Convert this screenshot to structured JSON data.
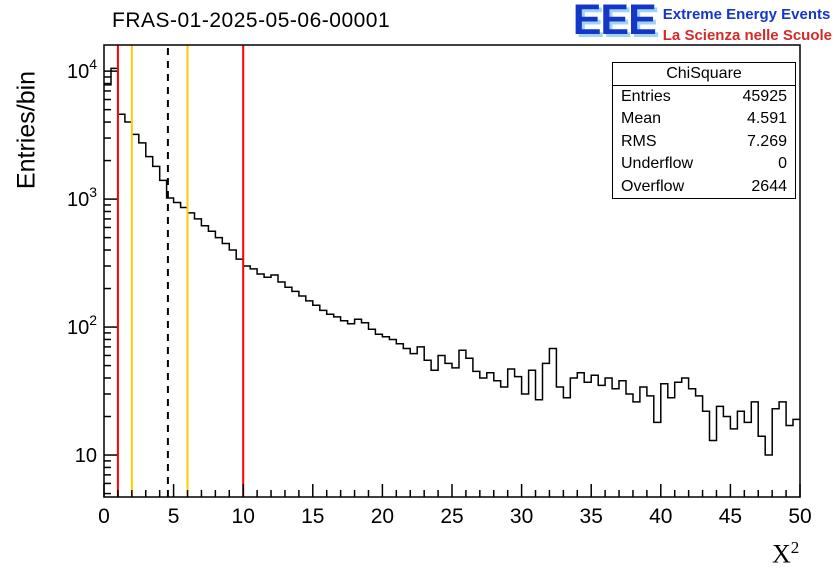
{
  "title": "FRAS-01-2025-05-06-00001",
  "logo": {
    "letters": "EEE",
    "line1": "Extreme Energy Events",
    "line2": "La Scienza nelle Scuole",
    "letters_color": "#1537c8",
    "line1_color": "#1537c8",
    "line2_color": "#d42a2a"
  },
  "stats_box": {
    "header": "ChiSquare",
    "rows": [
      {
        "label": "Entries",
        "value": "45925"
      },
      {
        "label": "Mean",
        "value": "4.591"
      },
      {
        "label": "RMS",
        "value": "7.269"
      },
      {
        "label": "Underflow",
        "value": "0"
      },
      {
        "label": "Overflow",
        "value": "2644"
      }
    ]
  },
  "axis_labels": {
    "y": "Entries/bin",
    "x_base": "X",
    "x_exp": "2"
  },
  "chart_data": {
    "type": "bar",
    "style": "step-histogram",
    "title": "FRAS-01-2025-05-06-00001",
    "xlabel": "X^2",
    "ylabel": "Entries/bin",
    "xlim": [
      0,
      50
    ],
    "ylim": [
      4.7,
      16000
    ],
    "yscale": "log",
    "grid": false,
    "line_color": "#000000",
    "bin_start": 0,
    "bin_width": 0.5,
    "values": [
      7800,
      10500,
      4600,
      4000,
      3200,
      2750,
      2150,
      1800,
      1400,
      1020,
      940,
      860,
      780,
      700,
      620,
      560,
      500,
      450,
      400,
      340,
      300,
      285,
      260,
      245,
      255,
      225,
      205,
      190,
      175,
      160,
      148,
      135,
      126,
      120,
      112,
      106,
      115,
      108,
      96,
      88,
      84,
      80,
      74,
      68,
      62,
      70,
      55,
      46,
      60,
      52,
      48,
      66,
      57,
      45,
      40,
      44,
      38,
      34,
      47,
      41,
      30,
      46,
      27,
      52,
      68,
      34,
      28,
      40,
      44,
      37,
      42,
      35,
      40,
      33,
      38,
      30,
      26,
      34,
      29,
      18,
      36,
      28,
      37,
      40,
      33,
      29,
      22,
      13,
      24,
      20,
      16,
      22,
      18,
      26,
      14,
      10,
      23,
      26,
      17,
      19
    ],
    "x_major_ticks": [
      0,
      5,
      10,
      15,
      20,
      25,
      30,
      35,
      40,
      45,
      50
    ],
    "x_minor_step": 1,
    "y_ticks": [
      {
        "value": 10,
        "base": "10",
        "exp": ""
      },
      {
        "value": 100,
        "base": "10",
        "exp": "2"
      },
      {
        "value": 1000,
        "base": "10",
        "exp": "3"
      },
      {
        "value": 10000,
        "base": "10",
        "exp": "4"
      }
    ],
    "markers": [
      {
        "x": 1,
        "color": "#ff0000",
        "style": "solid",
        "name": "red-cut-low"
      },
      {
        "x": 2,
        "color": "#ffcc00",
        "style": "solid",
        "name": "yellow-cut-low"
      },
      {
        "x": 4.591,
        "color": "#000000",
        "style": "dashed",
        "name": "mean-line"
      },
      {
        "x": 6,
        "color": "#ffcc00",
        "style": "solid",
        "name": "yellow-cut-high"
      },
      {
        "x": 10,
        "color": "#ff0000",
        "style": "solid",
        "name": "red-cut-high"
      }
    ],
    "legend": "none"
  }
}
